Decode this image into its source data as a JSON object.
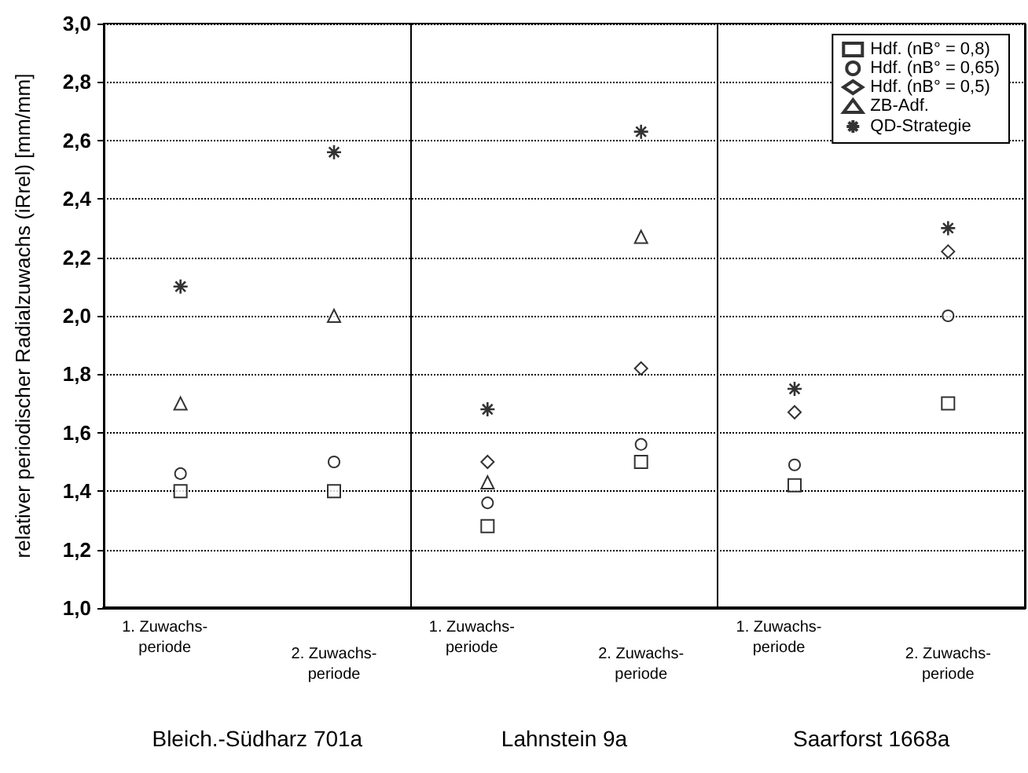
{
  "chart_data": {
    "type": "scatter",
    "ylabel": "relativer periodischer Radialzuwachs (iRrel) [mm/mm]",
    "categories": [
      "1. Zuwachs-\nperiode",
      "2. Zuwachs-\nperiode",
      "1. Zuwachs-\nperiode",
      "2. Zuwachs-\nperiode",
      "1. Zuwachs-\nperiode",
      "2. Zuwachs-\nperiode"
    ],
    "annotations": [
      "Bleich.-Südharz 701a",
      "Lahnstein 9a",
      "Saarforst 1668a"
    ],
    "ylim": [
      1.0,
      3.0
    ],
    "yticks": [
      {
        "value": 1.0,
        "label": "1,0"
      },
      {
        "value": 1.2,
        "label": "1,2"
      },
      {
        "value": 1.4,
        "label": "1,4"
      },
      {
        "value": 1.6,
        "label": "1,6"
      },
      {
        "value": 1.8,
        "label": "1,8"
      },
      {
        "value": 2.0,
        "label": "2,0"
      },
      {
        "value": 2.2,
        "label": "2,2"
      },
      {
        "value": 2.4,
        "label": "2,4"
      },
      {
        "value": 2.6,
        "label": "2,6"
      },
      {
        "value": 2.8,
        "label": "2,8"
      },
      {
        "value": 3.0,
        "label": "3,0"
      }
    ],
    "grid": "y",
    "legend": "top right",
    "series": [
      {
        "name": "Hdf. (nB° = 0,8)",
        "color": "#000000",
        "marker": "square",
        "values": [
          1.4,
          1.4,
          1.28,
          1.5,
          1.42,
          1.7
        ]
      },
      {
        "name": "Hdf. (nB° = 0,65)",
        "color": "#000000",
        "marker": "circle",
        "values": [
          1.46,
          1.5,
          1.36,
          1.56,
          1.49,
          2.0
        ]
      },
      {
        "name": "Hdf. (nB° = 0,5)",
        "color": "#000000",
        "marker": "diamond",
        "values": [
          null,
          null,
          1.5,
          1.82,
          1.67,
          2.22
        ]
      },
      {
        "name": "ZB-Adf.",
        "color": "#000000",
        "marker": "triangle",
        "values": [
          1.7,
          2.0,
          1.43,
          2.27,
          null,
          null
        ]
      },
      {
        "name": "QD-Strategie",
        "color": "#000000",
        "marker": "cross",
        "values": [
          2.1,
          2.56,
          1.68,
          2.63,
          1.75,
          2.3
        ]
      }
    ]
  }
}
